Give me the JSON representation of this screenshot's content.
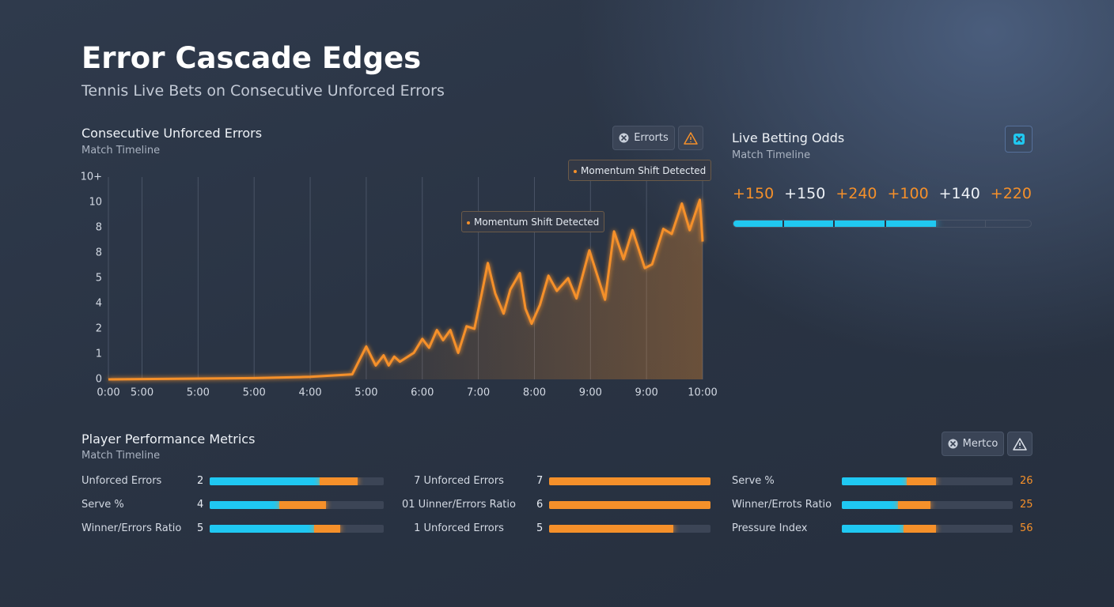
{
  "header": {
    "title": "Error Cascade Edges",
    "subtitle": "Tennis Live Bets on Consecutive Unforced Errors"
  },
  "chart_data": {
    "type": "line",
    "title": "Consecutive Unforced Errors",
    "subtitle": "Match Timeline",
    "x": [
      0,
      1.6,
      2.6,
      3.6,
      4.35,
      4.6,
      4.77,
      4.91,
      5.0,
      5.1,
      5.2,
      5.45,
      5.6,
      5.72,
      5.86,
      5.97,
      6.1,
      6.24,
      6.39,
      6.53,
      6.66,
      6.77,
      6.9,
      7.05,
      7.17,
      7.34,
      7.44,
      7.55,
      7.7,
      7.85,
      8.0,
      8.2,
      8.35,
      8.58,
      8.68,
      8.86,
      9.02,
      9.19,
      9.35,
      9.57,
      9.7,
      9.9,
      10.05,
      10.23,
      10.37,
      10.55,
      10.6
    ],
    "values": [
      0,
      0.03,
      0.05,
      0.1,
      0.2,
      1.3,
      0.55,
      0.95,
      0.55,
      0.9,
      0.7,
      1.05,
      1.6,
      1.25,
      1.95,
      1.55,
      1.95,
      1.05,
      2.1,
      2.0,
      3.4,
      4.6,
      3.4,
      2.6,
      3.55,
      4.2,
      2.8,
      2.2,
      2.95,
      4.1,
      3.5,
      4.0,
      3.2,
      5.1,
      4.4,
      3.15,
      5.85,
      4.75,
      5.9,
      4.4,
      4.55,
      5.95,
      5.75,
      6.95,
      5.9,
      7.1,
      5.45
    ],
    "color": "#f5902a",
    "xlim": [
      0,
      10.6
    ],
    "xticks": [
      {
        "value": 0,
        "label": "0:00"
      },
      {
        "value": 0.6,
        "label": "5:00"
      },
      {
        "value": 1.6,
        "label": "5:00"
      },
      {
        "value": 2.6,
        "label": "5:00"
      },
      {
        "value": 3.6,
        "label": "4:00"
      },
      {
        "value": 4.6,
        "label": "5:00"
      },
      {
        "value": 5.6,
        "label": "6:00"
      },
      {
        "value": 6.6,
        "label": "7:00"
      },
      {
        "value": 7.6,
        "label": "8:00"
      },
      {
        "value": 8.6,
        "label": "9:00"
      },
      {
        "value": 9.6,
        "label": "9:00"
      },
      {
        "value": 10.6,
        "label": "10:00"
      }
    ],
    "ylim": [
      0,
      8
    ],
    "yticks": [
      0,
      1,
      2,
      {
        "value": 3,
        "label": "4"
      },
      {
        "value": 4,
        "label": "5"
      },
      {
        "value": 5,
        "label": "8"
      },
      {
        "value": 6,
        "label": "8"
      },
      {
        "value": 7,
        "label": "10"
      },
      {
        "value": 8,
        "label": "10+"
      }
    ],
    "grid": true,
    "annotations": [
      "Momentum Shift Detected",
      "Momentum Shift Detected"
    ],
    "button": "Errorts"
  },
  "odds_panel": {
    "title": "Live Betting Odds",
    "subtitle": "Match Timeline",
    "odds": [
      {
        "text": "+150",
        "color": "#f5902a"
      },
      {
        "text": "+150",
        "color": "#eef2f7"
      },
      {
        "text": "+240",
        "color": "#f5902a"
      },
      {
        "text": "+100",
        "color": "#f5902a"
      },
      {
        "text": "+140",
        "color": "#eef2f7"
      },
      {
        "text": "+220",
        "color": "#f5902a"
      }
    ],
    "progress": 68
  },
  "metrics": {
    "title": "Player Performance Metrics",
    "subtitle": "Match Timeline",
    "button": "Mertco",
    "columns": [
      {
        "value_color": "#e6ebf2",
        "rows": [
          {
            "label": "Unforced Errors",
            "value": 2,
            "cyan": 63,
            "orange": 22
          },
          {
            "label": "Serve %",
            "value": 4,
            "cyan": 40,
            "orange": 27
          },
          {
            "label": "Winner/Errors Ratio",
            "value": 5,
            "cyan": 60,
            "orange": 15
          }
        ]
      },
      {
        "value_color": "#e6ebf2",
        "rows": [
          {
            "label": "7 Unforced Errors",
            "value": 7,
            "cyan": 0,
            "orange": 100
          },
          {
            "label": "01 Uinner/Errors Ratio",
            "value": 6,
            "cyan": 0,
            "orange": 100
          },
          {
            "label": "1 Unforced Errors",
            "value": 5,
            "cyan": 0,
            "orange": 77
          }
        ]
      },
      {
        "value_color": "#f5902a",
        "rows": [
          {
            "label": "Serve %",
            "value": 26,
            "cyan": 38,
            "orange": 17
          },
          {
            "label": "Winner/Errots Ratio",
            "value": 25,
            "cyan": 33,
            "orange": 19
          },
          {
            "label": "Pressure Index",
            "value": 56,
            "cyan": 36,
            "orange": 19
          }
        ]
      }
    ]
  }
}
